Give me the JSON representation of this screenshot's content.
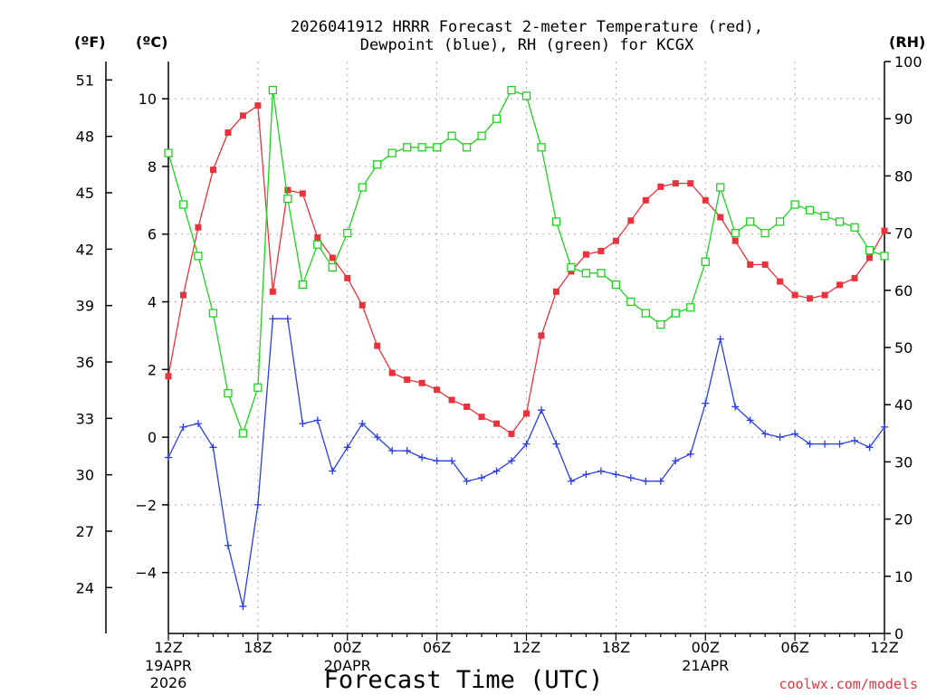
{
  "chart_data": {
    "type": "line",
    "title_line1": "2026041912 HRRR Forecast 2-meter Temperature (red),",
    "title_line2": "Dewpoint (blue), RH (green) for KCGX",
    "xlabel": "Forecast Time (UTC)",
    "credit": "coolwx.com/models",
    "units": {
      "f": "(ºF)",
      "c": "(ºC)",
      "rh": "(RH)"
    },
    "x_hours": [
      0,
      1,
      2,
      3,
      4,
      5,
      6,
      7,
      8,
      9,
      10,
      11,
      12,
      13,
      14,
      15,
      16,
      17,
      18,
      19,
      20,
      21,
      22,
      23,
      24,
      25,
      26,
      27,
      28,
      29,
      30,
      31,
      32,
      33,
      34,
      35,
      36,
      37,
      38,
      39,
      40,
      41,
      42,
      43,
      44,
      45,
      46,
      47,
      48
    ],
    "xlim": [
      0,
      48
    ],
    "x_ticks": [
      {
        "h": 0,
        "label": "12Z",
        "sub1": "19APR",
        "sub2": "2026"
      },
      {
        "h": 6,
        "label": "18Z",
        "sub1": "",
        "sub2": ""
      },
      {
        "h": 12,
        "label": "00Z",
        "sub1": "20APR",
        "sub2": ""
      },
      {
        "h": 18,
        "label": "06Z",
        "sub1": "",
        "sub2": ""
      },
      {
        "h": 24,
        "label": "12Z",
        "sub1": "",
        "sub2": ""
      },
      {
        "h": 30,
        "label": "18Z",
        "sub1": "",
        "sub2": ""
      },
      {
        "h": 36,
        "label": "00Z",
        "sub1": "21APR",
        "sub2": ""
      },
      {
        "h": 42,
        "label": "06Z",
        "sub1": "",
        "sub2": ""
      },
      {
        "h": 48,
        "label": "12Z",
        "sub1": "",
        "sub2": ""
      }
    ],
    "c_axis": {
      "ylim": [
        -5.8,
        11.1
      ],
      "ticks": [
        -4,
        -2,
        0,
        2,
        4,
        6,
        8,
        10
      ],
      "labels": [
        "−4",
        "−2",
        "0",
        "2",
        "4",
        "6",
        "8",
        "10"
      ]
    },
    "f_ticks": [
      24,
      27,
      30,
      33,
      36,
      39,
      42,
      45,
      48,
      51
    ],
    "rh_axis": {
      "ylim": [
        0,
        100
      ],
      "ticks": [
        0,
        10,
        20,
        30,
        40,
        50,
        60,
        70,
        80,
        90,
        100
      ]
    },
    "series": [
      {
        "color": "#e8323c",
        "axis": "c",
        "marker": "filled-square",
        "values": [
          1.8,
          4.2,
          6.2,
          7.9,
          9.0,
          9.5,
          9.8,
          4.3,
          7.3,
          7.2,
          5.9,
          5.3,
          4.7,
          3.9,
          2.7,
          1.9,
          1.7,
          1.6,
          1.4,
          1.1,
          0.9,
          0.6,
          0.4,
          0.1,
          0.7,
          3.0,
          4.3,
          4.9,
          5.4,
          5.5,
          5.8,
          6.4,
          7.0,
          7.4,
          7.5,
          7.5,
          7.0,
          6.5,
          5.8,
          5.1,
          5.1,
          4.6,
          4.2,
          4.1,
          4.2,
          4.5,
          4.7,
          5.3,
          6.1
        ]
      },
      {
        "color": "#2b3fe0",
        "axis": "c",
        "marker": "plus",
        "values": [
          -0.6,
          0.3,
          0.4,
          -0.3,
          -3.2,
          -5.0,
          -2.0,
          3.5,
          3.5,
          0.4,
          0.5,
          -1.0,
          -0.3,
          0.4,
          0.0,
          -0.4,
          -0.4,
          -0.6,
          -0.7,
          -0.7,
          -1.3,
          -1.2,
          -1.0,
          -0.7,
          -0.2,
          0.8,
          -0.2,
          -1.3,
          -1.1,
          -1.0,
          -1.1,
          -1.2,
          -1.3,
          -1.3,
          -0.7,
          -0.5,
          1.0,
          2.9,
          0.9,
          0.5,
          0.1,
          0.0,
          0.1,
          -0.2,
          -0.2,
          -0.2,
          -0.1,
          -0.3,
          0.3
        ]
      },
      {
        "color": "#1ed21e",
        "axis": "rh",
        "marker": "open-square",
        "values": [
          84,
          75,
          66,
          56,
          42,
          35,
          43,
          95,
          76,
          61,
          68,
          64,
          70,
          78,
          82,
          84,
          85,
          85,
          85,
          87,
          85,
          87,
          90,
          95,
          94,
          85,
          72,
          64,
          63,
          63,
          61,
          58,
          56,
          54,
          56,
          57,
          65,
          78,
          70,
          72,
          70,
          72,
          75,
          74,
          73,
          72,
          71,
          67,
          66
        ]
      }
    ]
  }
}
